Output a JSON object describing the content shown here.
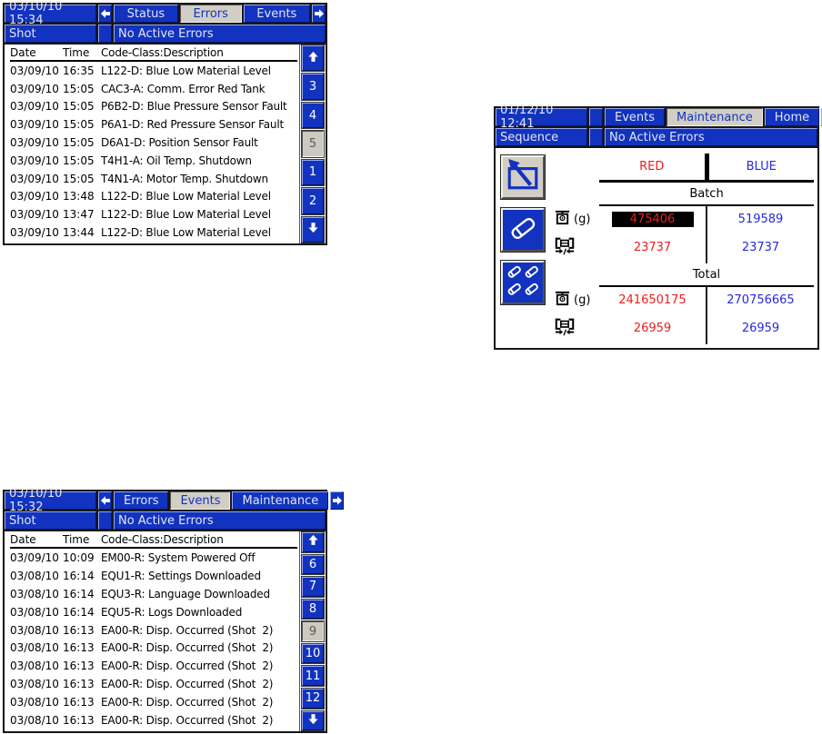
{
  "colors": {
    "hmi_blue": "#1233bf",
    "selected_tab_gray": "#d2cec6",
    "red_value": "#ee1c1c",
    "blue_value": "#2828dd",
    "highlight_bg": "#000000",
    "table_bg": "#ffffff"
  },
  "panels": {
    "errors": {
      "datetime": "03/10/10 15:34",
      "mode": "Shot",
      "banner": "No Active Errors",
      "tabs": [
        {
          "label": "Status",
          "selected": false
        },
        {
          "label": "Errors",
          "selected": true
        },
        {
          "label": "Events",
          "selected": false
        }
      ],
      "columns": {
        "date": "Date",
        "time": "Time",
        "desc": "Code-Class:Description"
      },
      "rows": [
        {
          "date": "03/09/10",
          "time": "16:35",
          "desc": "L122-D: Blue Low Material Level"
        },
        {
          "date": "03/09/10",
          "time": "15:05",
          "desc": "CAC3-A: Comm. Error Red Tank"
        },
        {
          "date": "03/09/10",
          "time": "15:05",
          "desc": "P6B2-D: Blue Pressure Sensor Fault"
        },
        {
          "date": "03/09/10",
          "time": "15:05",
          "desc": "P6A1-D: Red Pressure Sensor Fault"
        },
        {
          "date": "03/09/10",
          "time": "15:05",
          "desc": "D6A1-D: Position Sensor Fault"
        },
        {
          "date": "03/09/10",
          "time": "15:05",
          "desc": "T4H1-A: Oil Temp. Shutdown"
        },
        {
          "date": "03/09/10",
          "time": "15:05",
          "desc": "T4N1-A: Motor Temp. Shutdown"
        },
        {
          "date": "03/09/10",
          "time": "13:48",
          "desc": "L122-D: Blue Low Material Level"
        },
        {
          "date": "03/09/10",
          "time": "13:47",
          "desc": "L122-D: Blue Low Material Level"
        },
        {
          "date": "03/09/10",
          "time": "13:44",
          "desc": "L122-D: Blue Low Material Level"
        }
      ],
      "pages": [
        {
          "label": "3",
          "selected": false
        },
        {
          "label": "4",
          "selected": false
        },
        {
          "label": "5",
          "selected": true
        },
        {
          "label": "1",
          "selected": false
        },
        {
          "label": "2",
          "selected": false
        }
      ]
    },
    "maintenance": {
      "datetime": "01/12/10 12:41",
      "mode": "Sequence",
      "banner": "No Active Errors",
      "tabs": [
        {
          "label": "Events",
          "selected": false
        },
        {
          "label": "Maintenance",
          "selected": true
        },
        {
          "label": "Home",
          "selected": false
        }
      ],
      "column_headers": {
        "red": "RED",
        "blue": "BLUE"
      },
      "weight_unit": "(g)",
      "batch": {
        "label": "Batch",
        "red_weight": "475406",
        "blue_weight": "519589",
        "red_cycles": "23737",
        "blue_cycles": "23737"
      },
      "total": {
        "label": "Total",
        "red_weight": "241650175",
        "blue_weight": "270756665",
        "red_cycles": "26959",
        "blue_cycles": "26959"
      }
    },
    "events": {
      "datetime": "03/10/10 15:32",
      "mode": "Shot",
      "banner": "No Active Errors",
      "tabs": [
        {
          "label": "Errors",
          "selected": false
        },
        {
          "label": "Events",
          "selected": true
        },
        {
          "label": "Maintenance",
          "selected": false
        }
      ],
      "columns": {
        "date": "Date",
        "time": "Time",
        "desc": "Code-Class:Description"
      },
      "rows": [
        {
          "date": "03/09/10",
          "time": "10:09",
          "desc": "EM00-R: System Powered Off"
        },
        {
          "date": "03/08/10",
          "time": "16:14",
          "desc": "EQU1-R: Settings Downloaded"
        },
        {
          "date": "03/08/10",
          "time": "16:14",
          "desc": "EQU3-R: Language Downloaded"
        },
        {
          "date": "03/08/10",
          "time": "16:14",
          "desc": "EQU5-R: Logs Downloaded"
        },
        {
          "date": "03/08/10",
          "time": "16:13",
          "desc": "EA00-R: Disp. Occurred (Shot  2)"
        },
        {
          "date": "03/08/10",
          "time": "16:13",
          "desc": "EA00-R: Disp. Occurred (Shot  2)"
        },
        {
          "date": "03/08/10",
          "time": "16:13",
          "desc": "EA00-R: Disp. Occurred (Shot  2)"
        },
        {
          "date": "03/08/10",
          "time": "16:13",
          "desc": "EA00-R: Disp. Occurred (Shot  2)"
        },
        {
          "date": "03/08/10",
          "time": "16:13",
          "desc": "EA00-R: Disp. Occurred (Shot  2)"
        },
        {
          "date": "03/08/10",
          "time": "16:13",
          "desc": "EA00-R: Disp. Occurred (Shot  2)"
        }
      ],
      "pages": [
        {
          "label": "6",
          "selected": false
        },
        {
          "label": "7",
          "selected": false
        },
        {
          "label": "8",
          "selected": false
        },
        {
          "label": "9",
          "selected": true
        },
        {
          "label": "10",
          "selected": false
        },
        {
          "label": "11",
          "selected": false
        },
        {
          "label": "12",
          "selected": false
        }
      ]
    }
  }
}
